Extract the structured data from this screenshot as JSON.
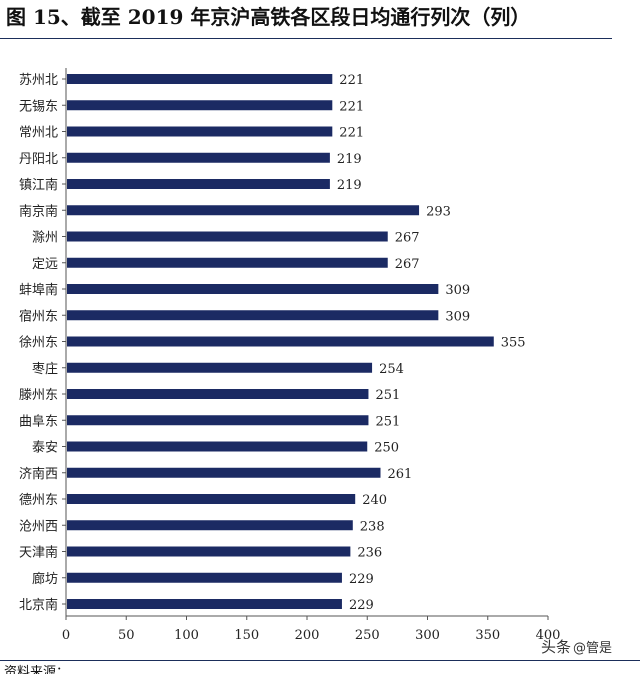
{
  "figure": {
    "title": "图 15、截至 2019 年京沪高铁各区段日均通行列次（列）",
    "source_note": "资料来源：",
    "watermark": {
      "app": "头条",
      "handle": "@管是"
    }
  },
  "chart_data": {
    "type": "bar",
    "orientation": "horizontal",
    "categories": [
      "苏州北",
      "无锡东",
      "常州北",
      "丹阳北",
      "镇江南",
      "南京南",
      "滁州",
      "定远",
      "蚌埠南",
      "宿州东",
      "徐州东",
      "枣庄",
      "滕州东",
      "曲阜东",
      "泰安",
      "济南西",
      "德州东",
      "沧州西",
      "天津南",
      "廊坊",
      "北京南"
    ],
    "values": [
      221,
      221,
      221,
      219,
      219,
      293,
      267,
      267,
      309,
      309,
      355,
      254,
      251,
      251,
      250,
      261,
      240,
      238,
      236,
      229,
      229
    ],
    "xlim": [
      0,
      400
    ],
    "xticks": [
      0,
      50,
      100,
      150,
      200,
      250,
      300,
      350,
      400
    ],
    "data_labels": true,
    "grid": false,
    "bar_color": "#1b2a63",
    "xlabel": "",
    "ylabel": ""
  }
}
